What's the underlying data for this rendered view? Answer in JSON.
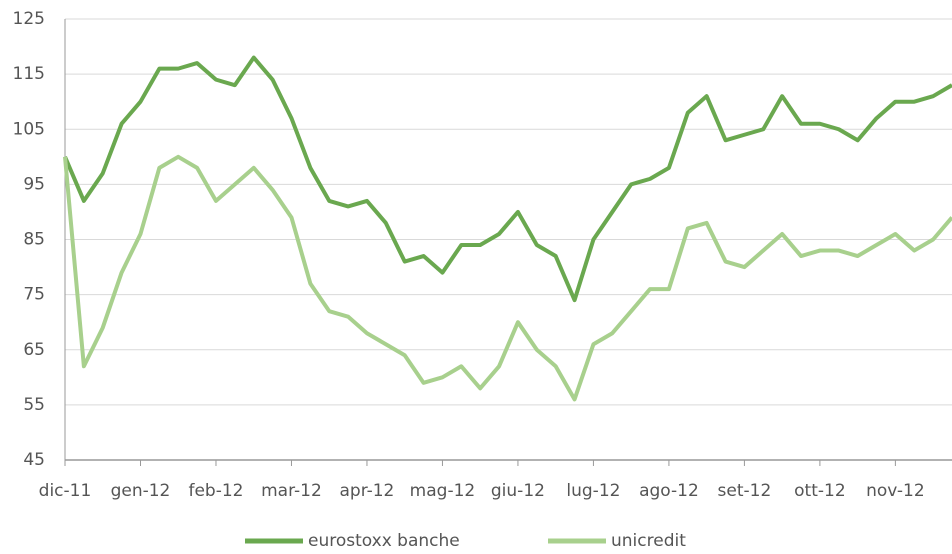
{
  "chart_data": {
    "type": "line",
    "categories": [
      "dic-11",
      null,
      null,
      null,
      "gen-12",
      null,
      null,
      null,
      "feb-12",
      null,
      null,
      null,
      "mar-12",
      null,
      null,
      null,
      "apr-12",
      null,
      null,
      null,
      "mag-12",
      null,
      null,
      null,
      "giu-12",
      null,
      null,
      null,
      "lug-12",
      null,
      null,
      null,
      "ago-12",
      null,
      null,
      null,
      "set-12",
      null,
      null,
      null,
      "ott-12",
      null,
      null,
      null,
      "nov-12",
      null,
      null,
      null
    ],
    "series": [
      {
        "name": "eurostoxx banche",
        "color": "#6aa84f",
        "values": [
          100,
          92,
          97,
          106,
          110,
          116,
          116,
          117,
          114,
          113,
          118,
          114,
          107,
          98,
          92,
          91,
          92,
          88,
          81,
          82,
          79,
          84,
          84,
          86,
          90,
          84,
          82,
          74,
          85,
          90,
          95,
          96,
          98,
          108,
          111,
          103,
          104,
          105,
          111,
          106,
          106,
          105,
          103,
          107,
          110,
          110,
          111,
          113
        ]
      },
      {
        "name": "unicredit",
        "color": "#a8d08d",
        "values": [
          100,
          62,
          69,
          79,
          86,
          98,
          100,
          98,
          92,
          95,
          98,
          94,
          89,
          77,
          72,
          71,
          68,
          66,
          64,
          59,
          60,
          62,
          58,
          62,
          70,
          65,
          62,
          56,
          66,
          68,
          72,
          76,
          76,
          87,
          88,
          81,
          80,
          83,
          86,
          82,
          83,
          83,
          82,
          84,
          86,
          83,
          85,
          89
        ]
      }
    ],
    "ylim": [
      45,
      125
    ],
    "yticks": [
      45,
      55,
      65,
      75,
      85,
      95,
      105,
      115,
      125
    ],
    "grid": true,
    "legend": "bottom"
  }
}
